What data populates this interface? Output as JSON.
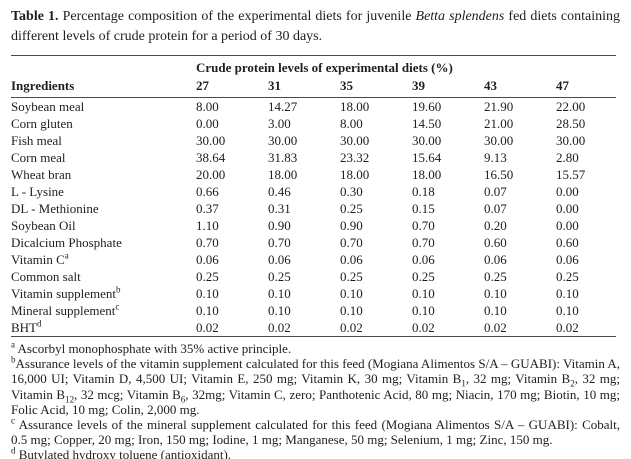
{
  "colors": {
    "background": "#ffffff",
    "text": "#1e1e1e",
    "rule": "#4a4a4a"
  },
  "caption": {
    "segments": [
      {
        "text": "Table 1.",
        "style": "bold"
      },
      {
        "text": " Percentage composition of the experimental diets for juvenile ",
        "style": "normal"
      },
      {
        "text": "Betta splendens",
        "style": "italic"
      },
      {
        "text": " fed diets containing different levels of crude protein for a period of 30 days.",
        "style": "normal"
      }
    ]
  },
  "table": {
    "span_header": "Crude protein levels of experimental diets (%)",
    "ingredients_header": "Ingredients",
    "level_headers": [
      "27",
      "31",
      "35",
      "39",
      "43",
      "47"
    ],
    "rows": [
      {
        "name": "Soybean meal",
        "sup": "",
        "values": [
          "8.00",
          "14.27",
          "18.00",
          "19.60",
          "21.90",
          "22.00"
        ]
      },
      {
        "name": "Corn gluten",
        "sup": "",
        "values": [
          "0.00",
          "3.00",
          "8.00",
          "14.50",
          "21.00",
          "28.50"
        ]
      },
      {
        "name": "Fish meal",
        "sup": "",
        "values": [
          "30.00",
          "30.00",
          "30.00",
          "30.00",
          "30.00",
          "30.00"
        ]
      },
      {
        "name": "Corn meal",
        "sup": "",
        "values": [
          "38.64",
          "31.83",
          "23.32",
          "15.64",
          "9.13",
          "2.80"
        ]
      },
      {
        "name": "Wheat bran",
        "sup": "",
        "values": [
          "20.00",
          "18.00",
          "18.00",
          "18.00",
          "16.50",
          "15.57"
        ]
      },
      {
        "name": "L - Lysine",
        "sup": "",
        "values": [
          "0.66",
          "0.46",
          "0.30",
          "0.18",
          "0.07",
          "0.00"
        ]
      },
      {
        "name": "DL - Methionine",
        "sup": "",
        "values": [
          "0.37",
          "0.31",
          "0.25",
          "0.15",
          "0.07",
          "0.00"
        ]
      },
      {
        "name": "Soybean Oil",
        "sup": "",
        "values": [
          "1.10",
          "0.90",
          "0.90",
          "0.70",
          "0.20",
          "0.00"
        ]
      },
      {
        "name": "Dicalcium Phosphate",
        "sup": "",
        "values": [
          "0.70",
          "0.70",
          "0.70",
          "0.70",
          "0.60",
          "0.60"
        ]
      },
      {
        "name": "Vitamin C",
        "sup": "a",
        "values": [
          "0.06",
          "0.06",
          "0.06",
          "0.06",
          "0.06",
          "0.06"
        ]
      },
      {
        "name": "Common salt",
        "sup": "",
        "values": [
          "0.25",
          "0.25",
          "0.25",
          "0.25",
          "0.25",
          "0.25"
        ]
      },
      {
        "name": "Vitamin supplement",
        "sup": "b",
        "values": [
          "0.10",
          "0.10",
          "0.10",
          "0.10",
          "0.10",
          "0.10"
        ]
      },
      {
        "name": "Mineral supplement",
        "sup": "c",
        "values": [
          "0.10",
          "0.10",
          "0.10",
          "0.10",
          "0.10",
          "0.10"
        ]
      },
      {
        "name": "BHT",
        "sup": "d",
        "values": [
          "0.02",
          "0.02",
          "0.02",
          "0.02",
          "0.02",
          "0.02"
        ]
      }
    ]
  },
  "footnotes": [
    {
      "segments": [
        {
          "text": "a",
          "style": "sup"
        },
        {
          "text": " Ascorbyl monophosphate with 35% active principle.",
          "style": "normal"
        }
      ]
    },
    {
      "segments": [
        {
          "text": "b",
          "style": "sup"
        },
        {
          "text": "Assurance levels of the vitamin supplement calculated for this feed (Mogiana Alimentos S/A – GUABI): Vitamin A, 16,000 UI; Vitamin D, 4,500 UI; Vitamin E, 250 mg; Vitamin K, 30 mg; Vitamin B",
          "style": "normal"
        },
        {
          "text": "1",
          "style": "sub"
        },
        {
          "text": ", 32 mg; Vitamin B",
          "style": "normal"
        },
        {
          "text": "2",
          "style": "sub"
        },
        {
          "text": ", 32 mg; Vitamin B",
          "style": "normal"
        },
        {
          "text": "12",
          "style": "sub"
        },
        {
          "text": ", 32 mcg; Vitamin B",
          "style": "normal"
        },
        {
          "text": "6",
          "style": "sub"
        },
        {
          "text": ", 32mg; Vitamin C, zero; Panthotenic Acid, 80 mg; Niacin, 170 mg; Biotin, 10 mg; Folic Acid, 10 mg; Colin, 2,000 mg.",
          "style": "normal"
        }
      ]
    },
    {
      "segments": [
        {
          "text": "c",
          "style": "sup"
        },
        {
          "text": " Assurance levels of the mineral supplement calculated for this feed (Mogiana Alimentos S/A – GUABI): Cobalt, 0.5 mg; Copper, 20 mg; Iron, 150 mg; Iodine, 1 mg; Manganese, 50 mg; Selenium, 1 mg; Zinc, 150 mg.",
          "style": "normal"
        }
      ]
    },
    {
      "segments": [
        {
          "text": "d",
          "style": "sup"
        },
        {
          "text": " Butylated hydroxy toluene (antioxidant).",
          "style": "normal"
        }
      ]
    }
  ]
}
